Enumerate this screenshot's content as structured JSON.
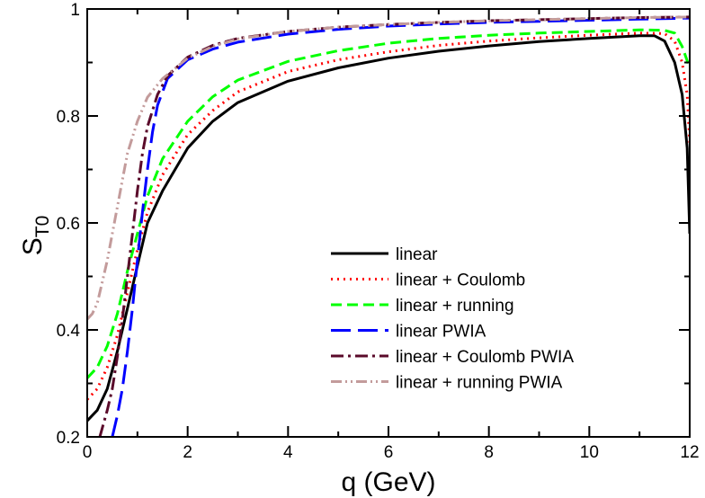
{
  "chart_data": {
    "type": "line",
    "title": "",
    "xlabel": "q (GeV)",
    "ylabel": "S",
    "ylabel_sub": "T0",
    "xlim": [
      0,
      12
    ],
    "ylim": [
      0.2,
      1.0
    ],
    "xticks": [
      0,
      2,
      4,
      6,
      8,
      10,
      12
    ],
    "yticks": [
      0.2,
      0.4,
      0.6,
      0.8,
      1.0
    ],
    "ytick_labels": [
      "0.2",
      "0.4",
      "0.6",
      "0.8",
      "1"
    ],
    "grid": false,
    "legend_position": "bottom-right",
    "series": [
      {
        "name": "linear",
        "color": "#000000",
        "style": "solid",
        "points": [
          [
            0.0,
            0.23
          ],
          [
            0.2,
            0.25
          ],
          [
            0.4,
            0.29
          ],
          [
            0.6,
            0.36
          ],
          [
            0.8,
            0.44
          ],
          [
            1.0,
            0.52
          ],
          [
            1.2,
            0.6
          ],
          [
            1.5,
            0.66
          ],
          [
            2.0,
            0.74
          ],
          [
            2.5,
            0.79
          ],
          [
            3.0,
            0.825
          ],
          [
            4.0,
            0.865
          ],
          [
            5.0,
            0.89
          ],
          [
            6.0,
            0.908
          ],
          [
            7.0,
            0.921
          ],
          [
            8.0,
            0.931
          ],
          [
            9.0,
            0.939
          ],
          [
            10.0,
            0.945
          ],
          [
            11.0,
            0.95
          ],
          [
            11.3,
            0.95
          ],
          [
            11.5,
            0.94
          ],
          [
            11.7,
            0.9
          ],
          [
            11.85,
            0.84
          ],
          [
            11.95,
            0.74
          ],
          [
            12.0,
            0.58
          ]
        ]
      },
      {
        "name": "linear + Coulomb",
        "color": "#ff0000",
        "style": "dotted",
        "points": [
          [
            0.0,
            0.27
          ],
          [
            0.2,
            0.29
          ],
          [
            0.4,
            0.33
          ],
          [
            0.6,
            0.39
          ],
          [
            0.8,
            0.47
          ],
          [
            1.0,
            0.55
          ],
          [
            1.2,
            0.62
          ],
          [
            1.5,
            0.69
          ],
          [
            2.0,
            0.765
          ],
          [
            2.5,
            0.81
          ],
          [
            3.0,
            0.845
          ],
          [
            4.0,
            0.883
          ],
          [
            5.0,
            0.905
          ],
          [
            6.0,
            0.92
          ],
          [
            7.0,
            0.932
          ],
          [
            8.0,
            0.94
          ],
          [
            9.0,
            0.946
          ],
          [
            10.0,
            0.951
          ],
          [
            11.0,
            0.955
          ],
          [
            11.5,
            0.954
          ],
          [
            11.7,
            0.94
          ],
          [
            11.85,
            0.9
          ],
          [
            11.95,
            0.84
          ],
          [
            12.0,
            0.75
          ]
        ]
      },
      {
        "name": "linear + running",
        "color": "#00ff00",
        "style": "dashed",
        "points": [
          [
            0.0,
            0.31
          ],
          [
            0.2,
            0.33
          ],
          [
            0.4,
            0.37
          ],
          [
            0.6,
            0.43
          ],
          [
            0.8,
            0.51
          ],
          [
            1.0,
            0.58
          ],
          [
            1.2,
            0.65
          ],
          [
            1.5,
            0.72
          ],
          [
            2.0,
            0.79
          ],
          [
            2.5,
            0.836
          ],
          [
            3.0,
            0.867
          ],
          [
            4.0,
            0.902
          ],
          [
            5.0,
            0.922
          ],
          [
            6.0,
            0.936
          ],
          [
            7.0,
            0.945
          ],
          [
            8.0,
            0.951
          ],
          [
            9.0,
            0.955
          ],
          [
            10.0,
            0.958
          ],
          [
            11.0,
            0.961
          ],
          [
            11.5,
            0.96
          ],
          [
            11.7,
            0.955
          ],
          [
            11.85,
            0.93
          ],
          [
            12.0,
            0.89
          ]
        ]
      },
      {
        "name": "linear PWIA",
        "color": "#0000ff",
        "style": "longdash",
        "points": [
          [
            0.5,
            0.2
          ],
          [
            0.6,
            0.24
          ],
          [
            0.7,
            0.29
          ],
          [
            0.8,
            0.36
          ],
          [
            0.9,
            0.44
          ],
          [
            1.0,
            0.53
          ],
          [
            1.1,
            0.62
          ],
          [
            1.2,
            0.7
          ],
          [
            1.3,
            0.77
          ],
          [
            1.4,
            0.82
          ],
          [
            1.6,
            0.87
          ],
          [
            2.0,
            0.905
          ],
          [
            2.5,
            0.925
          ],
          [
            3.0,
            0.938
          ],
          [
            4.0,
            0.953
          ],
          [
            5.0,
            0.962
          ],
          [
            6.0,
            0.968
          ],
          [
            7.0,
            0.972
          ],
          [
            8.0,
            0.975
          ],
          [
            9.0,
            0.977
          ],
          [
            10.0,
            0.979
          ],
          [
            11.0,
            0.981
          ],
          [
            12.0,
            0.983
          ]
        ]
      },
      {
        "name": "linear + Coulomb PWIA",
        "color": "#5a0a2a",
        "style": "dashdot",
        "points": [
          [
            0.25,
            0.2
          ],
          [
            0.4,
            0.25
          ],
          [
            0.5,
            0.29
          ],
          [
            0.6,
            0.35
          ],
          [
            0.7,
            0.42
          ],
          [
            0.8,
            0.5
          ],
          [
            0.9,
            0.58
          ],
          [
            1.0,
            0.66
          ],
          [
            1.1,
            0.73
          ],
          [
            1.2,
            0.78
          ],
          [
            1.4,
            0.84
          ],
          [
            1.6,
            0.875
          ],
          [
            2.0,
            0.91
          ],
          [
            2.5,
            0.932
          ],
          [
            3.0,
            0.945
          ],
          [
            4.0,
            0.958
          ],
          [
            5.0,
            0.966
          ],
          [
            6.0,
            0.971
          ],
          [
            7.0,
            0.975
          ],
          [
            8.0,
            0.978
          ],
          [
            9.0,
            0.98
          ],
          [
            10.0,
            0.982
          ],
          [
            11.0,
            0.984
          ],
          [
            12.0,
            0.985
          ]
        ]
      },
      {
        "name": "linear + running PWIA",
        "color": "#c39b9b",
        "style": "dashdotdot",
        "points": [
          [
            0.0,
            0.42
          ],
          [
            0.1,
            0.43
          ],
          [
            0.2,
            0.45
          ],
          [
            0.3,
            0.49
          ],
          [
            0.4,
            0.53
          ],
          [
            0.5,
            0.58
          ],
          [
            0.6,
            0.63
          ],
          [
            0.7,
            0.68
          ],
          [
            0.8,
            0.73
          ],
          [
            1.0,
            0.79
          ],
          [
            1.2,
            0.835
          ],
          [
            1.5,
            0.87
          ],
          [
            2.0,
            0.908
          ],
          [
            2.5,
            0.93
          ],
          [
            3.0,
            0.944
          ],
          [
            4.0,
            0.958
          ],
          [
            5.0,
            0.966
          ],
          [
            6.0,
            0.971
          ],
          [
            7.0,
            0.975
          ],
          [
            8.0,
            0.978
          ],
          [
            9.0,
            0.98
          ],
          [
            10.0,
            0.982
          ],
          [
            11.0,
            0.984
          ],
          [
            12.0,
            0.985
          ]
        ]
      }
    ]
  }
}
